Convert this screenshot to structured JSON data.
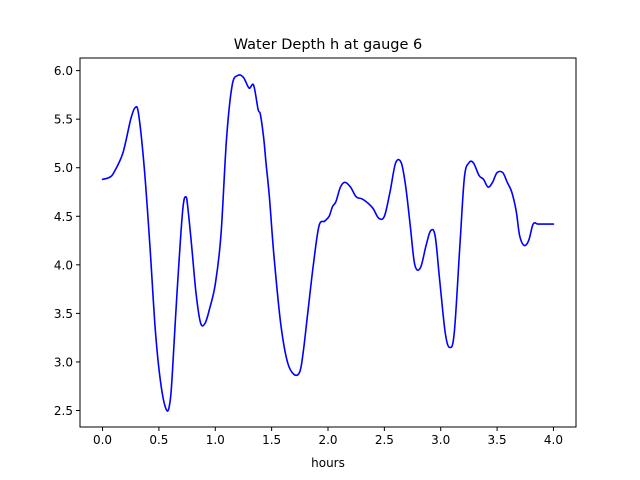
{
  "chart_data": {
    "type": "line",
    "title": "Water Depth h at gauge 6",
    "xlabel": "hours",
    "ylabel": "",
    "xlim": [
      -0.2,
      4.2
    ],
    "ylim": [
      2.33,
      6.13
    ],
    "xticks": [
      0.0,
      0.5,
      1.0,
      1.5,
      2.0,
      2.5,
      3.0,
      3.5,
      4.0
    ],
    "xtick_labels": [
      "0.0",
      "0.5",
      "1.0",
      "1.5",
      "2.0",
      "2.5",
      "3.0",
      "3.5",
      "4.0"
    ],
    "yticks": [
      2.5,
      3.0,
      3.5,
      4.0,
      4.5,
      5.0,
      5.5,
      6.0
    ],
    "ytick_labels": [
      "2.5",
      "3.0",
      "3.5",
      "4.0",
      "4.5",
      "5.0",
      "5.5",
      "6.0"
    ],
    "grid": false,
    "series": [
      {
        "color": "#0000ff",
        "x": [
          0.0,
          0.06,
          0.1,
          0.18,
          0.25,
          0.29,
          0.32,
          0.37,
          0.42,
          0.47,
          0.52,
          0.57,
          0.6,
          0.62,
          0.66,
          0.71,
          0.74,
          0.76,
          0.79,
          0.83,
          0.87,
          0.91,
          0.95,
          1.0,
          1.05,
          1.1,
          1.15,
          1.2,
          1.25,
          1.3,
          1.34,
          1.38,
          1.4,
          1.43,
          1.45,
          1.48,
          1.52,
          1.58,
          1.64,
          1.7,
          1.75,
          1.78,
          1.82,
          1.87,
          1.92,
          1.97,
          2.01,
          2.04,
          2.07,
          2.11,
          2.15,
          2.2,
          2.25,
          2.3,
          2.35,
          2.4,
          2.45,
          2.5,
          2.55,
          2.6,
          2.65,
          2.69,
          2.73,
          2.77,
          2.82,
          2.87,
          2.91,
          2.95,
          2.99,
          3.04,
          3.08,
          3.12,
          3.17,
          3.21,
          3.25,
          3.29,
          3.34,
          3.38,
          3.42,
          3.46,
          3.5,
          3.55,
          3.59,
          3.63,
          3.67,
          3.7,
          3.74,
          3.78,
          3.82,
          3.86,
          3.9,
          3.94,
          3.98,
          4.0
        ],
        "values": [
          4.88,
          4.9,
          4.95,
          5.15,
          5.5,
          5.62,
          5.55,
          5.0,
          4.2,
          3.3,
          2.75,
          2.5,
          2.6,
          2.9,
          3.7,
          4.55,
          4.7,
          4.55,
          4.2,
          3.7,
          3.4,
          3.4,
          3.55,
          3.8,
          4.3,
          5.3,
          5.85,
          5.95,
          5.93,
          5.82,
          5.85,
          5.6,
          5.55,
          5.3,
          5.05,
          4.7,
          4.1,
          3.4,
          3.0,
          2.87,
          2.9,
          3.1,
          3.5,
          4.0,
          4.4,
          4.45,
          4.5,
          4.6,
          4.65,
          4.8,
          4.85,
          4.8,
          4.7,
          4.68,
          4.64,
          4.58,
          4.48,
          4.5,
          4.75,
          5.05,
          5.05,
          4.8,
          4.4,
          4.0,
          3.97,
          4.2,
          4.35,
          4.3,
          3.85,
          3.3,
          3.15,
          3.3,
          4.2,
          4.9,
          5.05,
          5.05,
          4.92,
          4.88,
          4.8,
          4.85,
          4.95,
          4.95,
          4.85,
          4.75,
          4.55,
          4.3,
          4.2,
          4.25,
          4.42,
          4.42,
          4.42,
          4.42,
          4.42,
          4.42
        ]
      }
    ]
  }
}
